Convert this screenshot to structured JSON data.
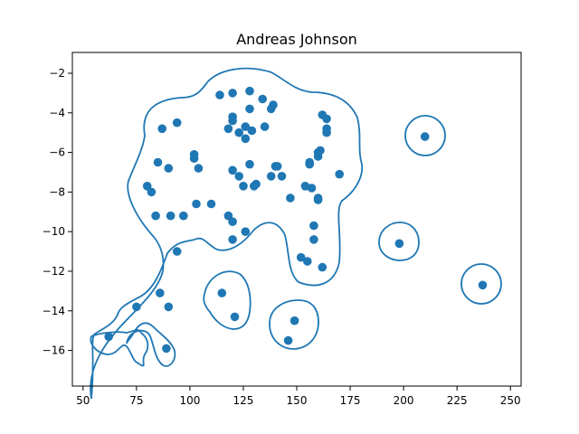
{
  "chart_data": {
    "type": "scatter",
    "title": "Andreas Johnson",
    "xlabel": "",
    "ylabel": "",
    "xlim": [
      45,
      255
    ],
    "ylim": [
      -17.8,
      -0.95
    ],
    "xticks": [
      50,
      75,
      100,
      125,
      150,
      175,
      200,
      225,
      250
    ],
    "yticks": [
      -2,
      -4,
      -6,
      -8,
      -10,
      -12,
      -14,
      -16
    ],
    "grid": false,
    "colors": {
      "series": "#1f77b4"
    },
    "points": [
      [
        62,
        -15.3
      ],
      [
        75,
        -13.8
      ],
      [
        86,
        -13.1
      ],
      [
        90,
        -13.8
      ],
      [
        89,
        -15.9
      ],
      [
        80,
        -7.7
      ],
      [
        82,
        -8.0
      ],
      [
        85,
        -6.5
      ],
      [
        87,
        -4.8
      ],
      [
        94,
        -4.5
      ],
      [
        90,
        -6.8
      ],
      [
        84,
        -9.2
      ],
      [
        91,
        -9.2
      ],
      [
        97,
        -9.2
      ],
      [
        94,
        -11.0
      ],
      [
        102,
        -6.1
      ],
      [
        102,
        -6.3
      ],
      [
        104,
        -6.8
      ],
      [
        103,
        -8.6
      ],
      [
        110,
        -8.6
      ],
      [
        114,
        -3.1
      ],
      [
        120,
        -3.0
      ],
      [
        128,
        -2.9
      ],
      [
        134,
        -3.3
      ],
      [
        120,
        -4.2
      ],
      [
        120,
        -4.4
      ],
      [
        118,
        -4.8
      ],
      [
        123,
        -5.0
      ],
      [
        126,
        -4.7
      ],
      [
        129,
        -4.9
      ],
      [
        126,
        -5.3
      ],
      [
        128,
        -3.8
      ],
      [
        138,
        -3.8
      ],
      [
        139,
        -3.6
      ],
      [
        135,
        -4.7
      ],
      [
        120,
        -6.9
      ],
      [
        123,
        -7.2
      ],
      [
        128,
        -6.6
      ],
      [
        125,
        -7.7
      ],
      [
        131,
        -7.6
      ],
      [
        130,
        -7.7
      ],
      [
        138,
        -7.2
      ],
      [
        140,
        -6.7
      ],
      [
        141,
        -6.7
      ],
      [
        143,
        -7.2
      ],
      [
        118,
        -9.2
      ],
      [
        120,
        -9.5
      ],
      [
        126,
        -10.0
      ],
      [
        120,
        -10.4
      ],
      [
        147,
        -8.3
      ],
      [
        154,
        -7.7
      ],
      [
        156,
        -6.5
      ],
      [
        156,
        -6.6
      ],
      [
        157,
        -7.8
      ],
      [
        160,
        -6.0
      ],
      [
        160,
        -6.2
      ],
      [
        161,
        -5.9
      ],
      [
        162,
        -4.1
      ],
      [
        164,
        -4.3
      ],
      [
        164,
        -4.8
      ],
      [
        164,
        -5.0
      ],
      [
        170,
        -7.1
      ],
      [
        160,
        -8.3
      ],
      [
        160,
        -8.4
      ],
      [
        158,
        -9.7
      ],
      [
        158,
        -10.4
      ],
      [
        152,
        -11.3
      ],
      [
        155,
        -11.5
      ],
      [
        162,
        -11.8
      ],
      [
        115,
        -13.1
      ],
      [
        121,
        -14.3
      ],
      [
        149,
        -14.5
      ],
      [
        146,
        -15.5
      ],
      [
        198,
        -10.6
      ],
      [
        210,
        -5.2
      ],
      [
        237,
        -12.7
      ]
    ]
  }
}
